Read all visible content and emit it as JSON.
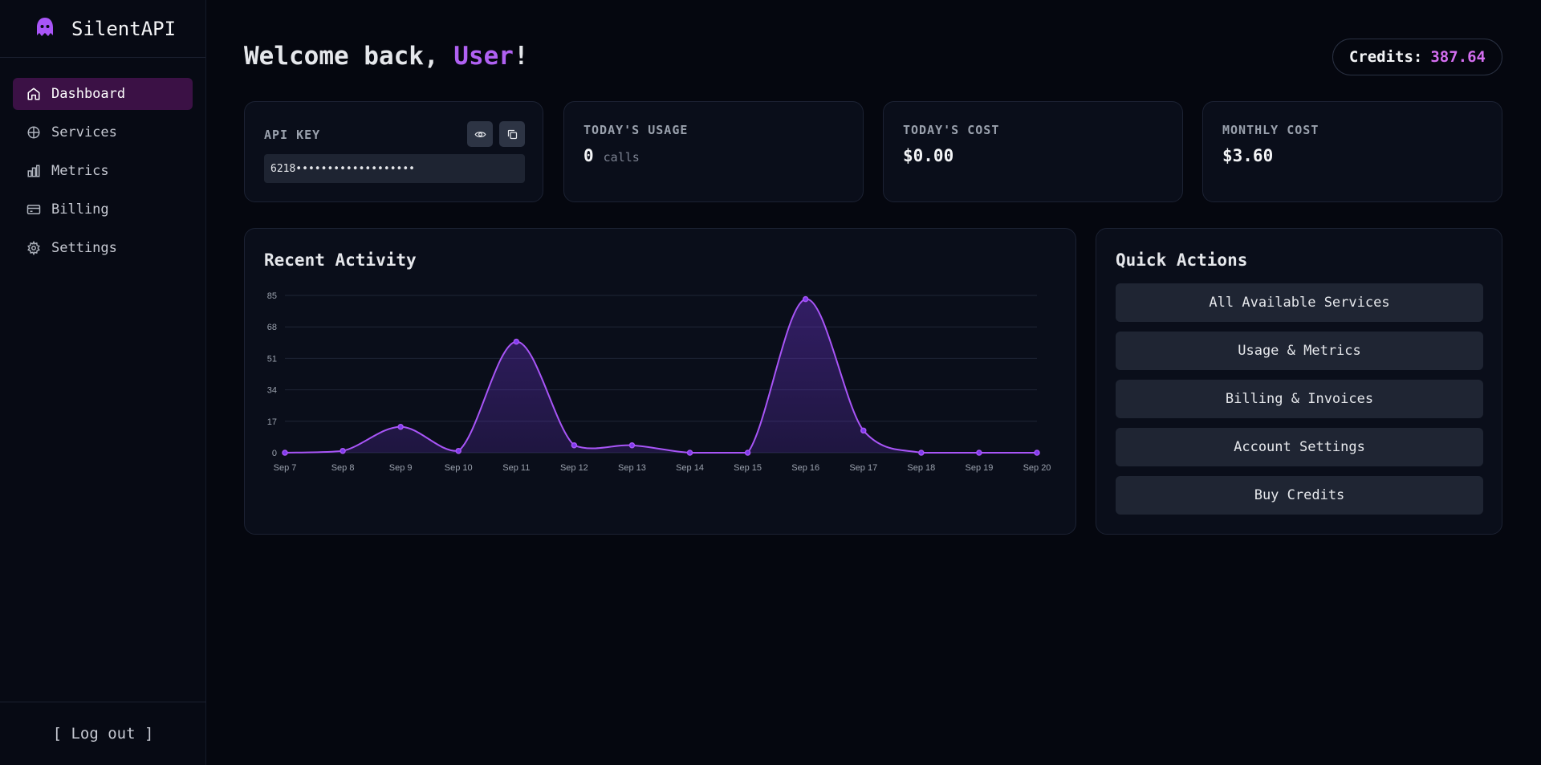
{
  "app": {
    "name": "SilentAPI"
  },
  "sidebar": {
    "items": [
      {
        "label": "Dashboard",
        "icon": "home-icon",
        "active": true
      },
      {
        "label": "Services",
        "icon": "globe-icon",
        "active": false
      },
      {
        "label": "Metrics",
        "icon": "bar-chart-icon",
        "active": false
      },
      {
        "label": "Billing",
        "icon": "credit-card-icon",
        "active": false
      },
      {
        "label": "Settings",
        "icon": "gear-icon",
        "active": false
      }
    ],
    "logout": "[ Log out ]"
  },
  "header": {
    "welcome_prefix": "Welcome back, ",
    "username": "User",
    "welcome_suffix": "!",
    "credits_label": "Credits:",
    "credits_value": "387.64"
  },
  "stats": {
    "api_key": {
      "label": "API KEY",
      "value": "6218•••••••••••••••••••"
    },
    "todays_usage": {
      "label": "TODAY'S USAGE",
      "value": "0",
      "unit": "calls"
    },
    "todays_cost": {
      "label": "TODAY'S COST",
      "value": "$0.00"
    },
    "monthly_cost": {
      "label": "MONTHLY COST",
      "value": "$3.60"
    }
  },
  "activity": {
    "title": "Recent Activity"
  },
  "quick_actions": {
    "title": "Quick Actions",
    "buttons": [
      "All Available Services",
      "Usage & Metrics",
      "Billing & Invoices",
      "Account Settings",
      "Buy Credits"
    ]
  },
  "colors": {
    "accent": "#b061f2",
    "credits": "#d46ef0",
    "active_nav": "#3b1145",
    "background": "#05070f"
  },
  "chart_data": {
    "type": "area",
    "title": "Recent Activity",
    "categories": [
      "Sep 7",
      "Sep 8",
      "Sep 9",
      "Sep 10",
      "Sep 11",
      "Sep 12",
      "Sep 13",
      "Sep 14",
      "Sep 15",
      "Sep 16",
      "Sep 17",
      "Sep 18",
      "Sep 19",
      "Sep 20"
    ],
    "values": [
      0,
      1,
      14,
      1,
      60,
      4,
      4,
      0,
      0,
      83,
      12,
      0,
      0,
      0
    ],
    "yticks": [
      0,
      17,
      34,
      51,
      68,
      85
    ],
    "ylim": [
      0,
      85
    ],
    "grid": true,
    "legend": "none",
    "color": "#a855f7"
  }
}
